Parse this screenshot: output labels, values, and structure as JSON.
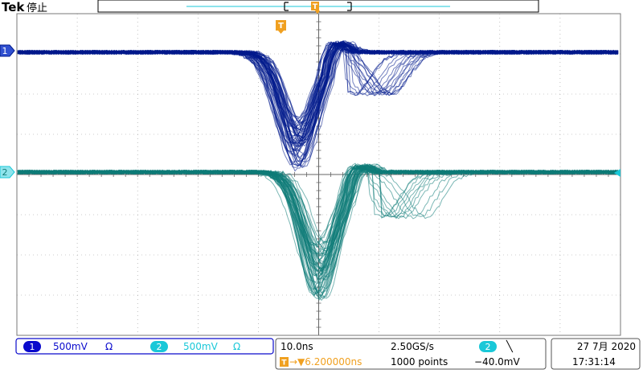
{
  "header": {
    "brand": "Tek",
    "run_state": "停止"
  },
  "trigger": {
    "marker": "T",
    "level_channel_marker": "T",
    "position_readout": "→▼6.200000ns"
  },
  "channels": [
    {
      "id": "1",
      "scale": "500mV",
      "coupling_symbol": "Ω",
      "color": "#0a0acc",
      "waveform_color": "#001a8c"
    },
    {
      "id": "2",
      "scale": "500mV",
      "coupling_symbol": "Ω",
      "color": "#1ac8d8",
      "waveform_color": "#0f7b78"
    }
  ],
  "timebase": {
    "time_per_div": "10.0ns",
    "sample_rate": "2.50GS/s",
    "record_length": "1000 points"
  },
  "trigger_settings": {
    "source": "2",
    "slope_symbol": "╲",
    "level": "−40.0mV"
  },
  "datetime": {
    "date": "27 7月 2020",
    "time": "17:31:14"
  },
  "colors": {
    "trigger_orange": "#f0a020",
    "grid": "#999999",
    "background": "#ffffff"
  }
}
